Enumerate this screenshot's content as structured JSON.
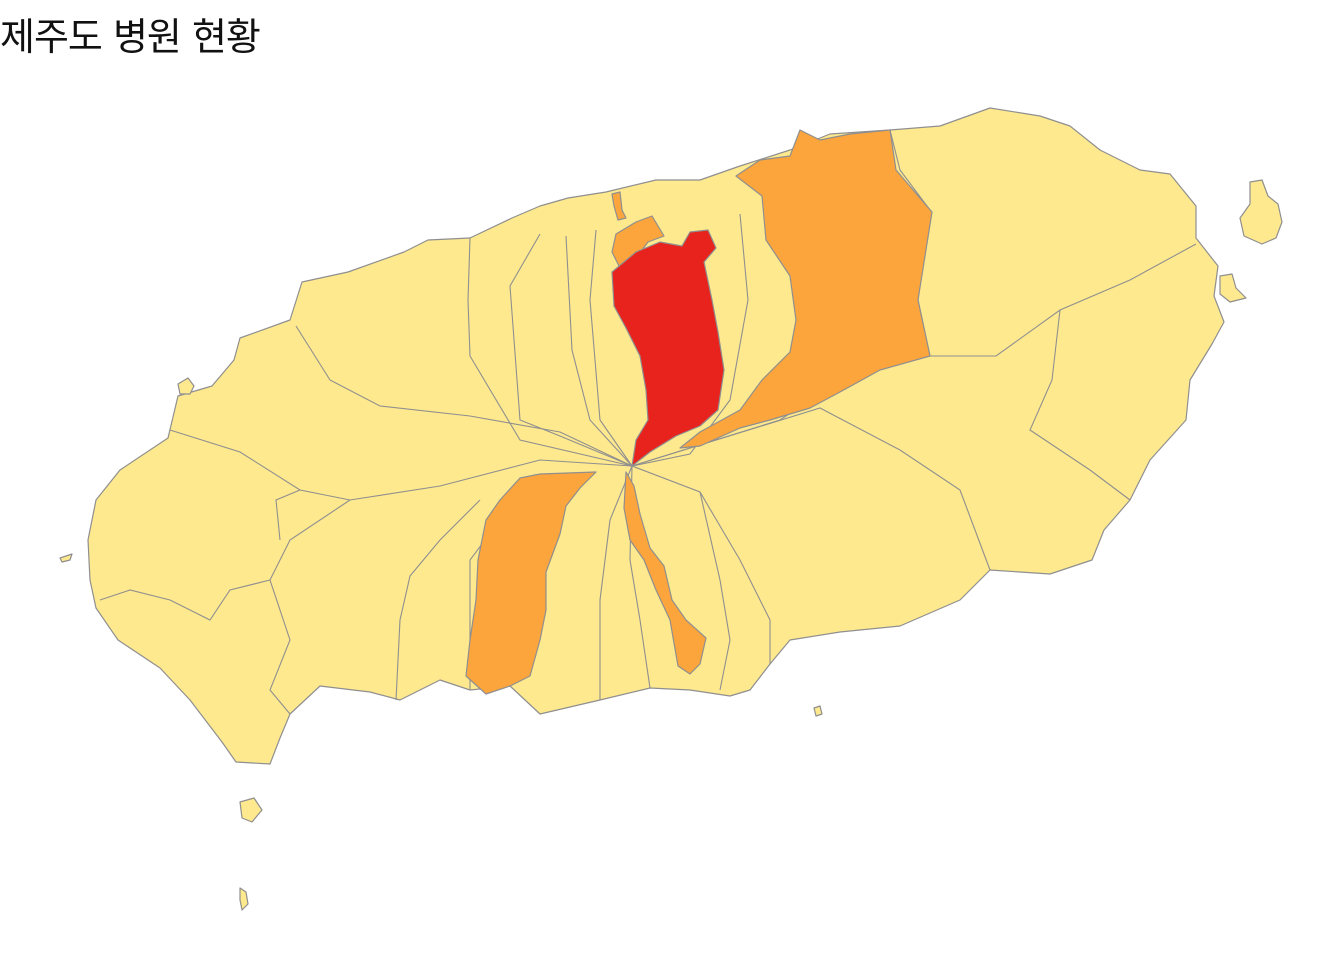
{
  "title": "제주도 병원 현황",
  "colors": {
    "low": "#fee98f",
    "medium": "#fca53d",
    "high": "#e8221c",
    "border": "#8f8f8f",
    "background": "#ffffff"
  },
  "regions": [
    {
      "id": "main-island-low",
      "level": "low"
    },
    {
      "id": "north-east-medium",
      "level": "medium"
    },
    {
      "id": "north-coast-small-medium",
      "level": "medium"
    },
    {
      "id": "north-coast-tiny-medium",
      "level": "medium"
    },
    {
      "id": "center-high",
      "level": "high"
    },
    {
      "id": "south-west-strip-medium",
      "level": "medium"
    },
    {
      "id": "south-center-strip-medium",
      "level": "medium"
    },
    {
      "id": "udo-island",
      "level": "low"
    },
    {
      "id": "east-islet",
      "level": "low"
    },
    {
      "id": "biyangdo-islet",
      "level": "low"
    },
    {
      "id": "marado-islet",
      "level": "low"
    },
    {
      "id": "gapado-islet",
      "level": "low"
    },
    {
      "id": "west-dot-islet",
      "level": "low"
    },
    {
      "id": "beomseom-islet",
      "level": "low"
    }
  ]
}
